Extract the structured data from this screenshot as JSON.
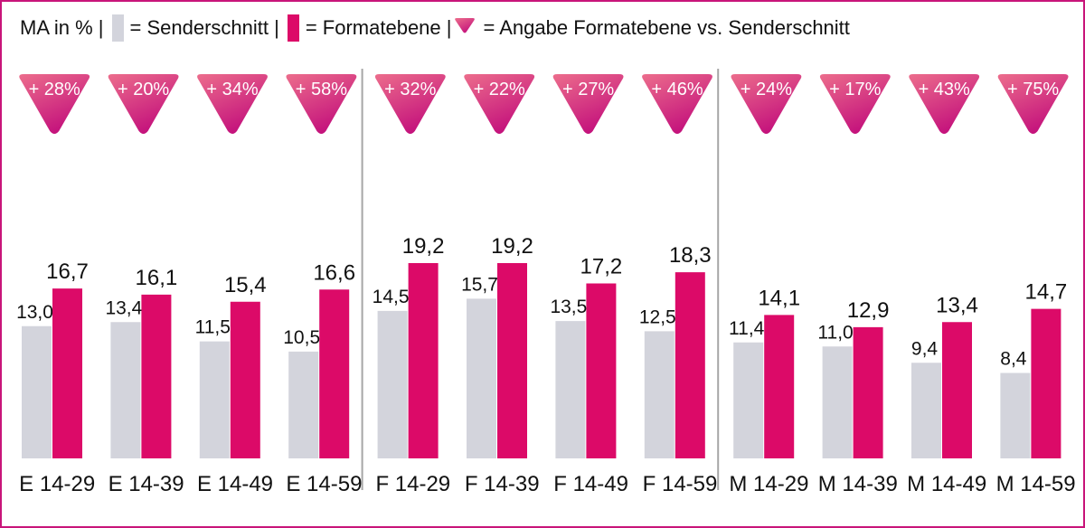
{
  "legend": {
    "prefix": "MA in % |",
    "avg_label": "= Senderschnitt |",
    "format_label": "= Formatebene |",
    "diff_label": "= Angabe Formatebene vs. Senderschnitt"
  },
  "colors": {
    "senderschnitt": "#d3d4dc",
    "formatebene": "#dc0a68",
    "badge_top": "#ec6d8c",
    "badge_bottom": "#c4127c",
    "frame": "#c8157a",
    "divider": "#a6a6a6"
  },
  "chart_data": {
    "type": "bar",
    "unit": "MA in %",
    "categories": [
      "E 14-29",
      "E 14-39",
      "E 14-49",
      "E 14-59",
      "F 14-29",
      "F 14-39",
      "F 14-49",
      "F 14-59",
      "M 14-29",
      "M 14-39",
      "M 14-49",
      "M 14-59"
    ],
    "groups": [
      {
        "name": "E",
        "categories": [
          "E 14-29",
          "E 14-39",
          "E 14-49",
          "E 14-59"
        ]
      },
      {
        "name": "F",
        "categories": [
          "F 14-29",
          "F 14-39",
          "F 14-49",
          "F 14-59"
        ]
      },
      {
        "name": "M",
        "categories": [
          "M 14-29",
          "M 14-39",
          "M 14-49",
          "M 14-59"
        ]
      }
    ],
    "series": [
      {
        "name": "Senderschnitt",
        "values": [
          13.0,
          13.4,
          11.5,
          10.5,
          14.5,
          15.7,
          13.5,
          12.5,
          11.4,
          11.0,
          9.4,
          8.4
        ],
        "labels": [
          "13,0",
          "13,4",
          "11,5",
          "10,5",
          "14,5",
          "15,7",
          "13,5",
          "12,5",
          "11,4",
          "11,0",
          "9,4",
          "8,4"
        ]
      },
      {
        "name": "Formatebene",
        "values": [
          16.7,
          16.1,
          15.4,
          16.6,
          19.2,
          19.2,
          17.2,
          18.3,
          14.1,
          12.9,
          13.4,
          14.7
        ],
        "labels": [
          "16,7",
          "16,1",
          "15,4",
          "16,6",
          "19,2",
          "19,2",
          "17,2",
          "18,3",
          "14,1",
          "12,9",
          "13,4",
          "14,7"
        ]
      }
    ],
    "differences": [
      "+ 28%",
      "+ 20%",
      "+ 34%",
      "+ 58%",
      "+ 32%",
      "+ 22%",
      "+ 27%",
      "+ 46%",
      "+ 24%",
      "+ 17%",
      "+ 43%",
      "+ 75%"
    ],
    "ylim": [
      0,
      20
    ],
    "grid": false,
    "legend_position": "top-left"
  }
}
